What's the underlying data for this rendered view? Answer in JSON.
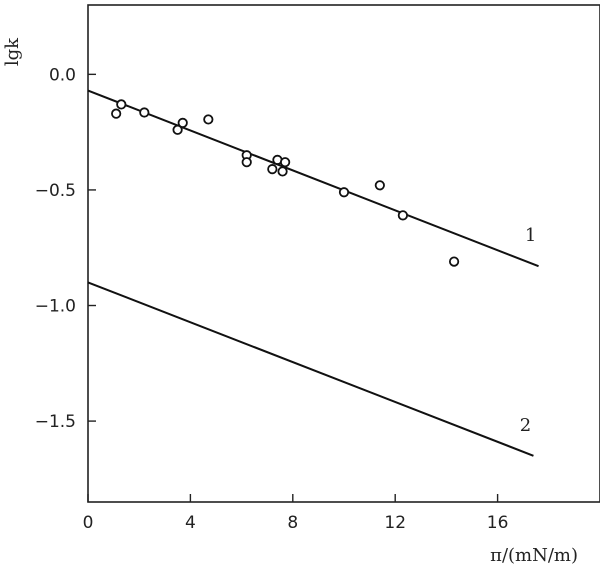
{
  "chart_data": {
    "type": "scatter",
    "ylabel": "lgk",
    "xlabel": "π/(mN/m)",
    "xlim": [
      0,
      20
    ],
    "ylim": [
      -1.85,
      0.3
    ],
    "x_ticks": [
      0,
      4,
      8,
      12,
      16
    ],
    "y_ticks": [
      0.0,
      -0.5,
      -1.0,
      -1.5
    ],
    "x_tick_labels": [
      "0",
      "4",
      "8",
      "12",
      "16"
    ],
    "y_tick_labels": [
      "0.0",
      "−0.5",
      "−1.0",
      "−1.5"
    ],
    "grid": false,
    "legend": "none",
    "series": [
      {
        "kind": "points",
        "marker": "open-circle",
        "points": [
          {
            "x": 1.1,
            "y": -0.17
          },
          {
            "x": 1.3,
            "y": -0.13
          },
          {
            "x": 2.2,
            "y": -0.165
          },
          {
            "x": 3.5,
            "y": -0.24
          },
          {
            "x": 3.7,
            "y": -0.21
          },
          {
            "x": 4.7,
            "y": -0.195
          },
          {
            "x": 6.2,
            "y": -0.35
          },
          {
            "x": 6.2,
            "y": -0.38
          },
          {
            "x": 7.2,
            "y": -0.41
          },
          {
            "x": 7.4,
            "y": -0.37
          },
          {
            "x": 7.6,
            "y": -0.42
          },
          {
            "x": 7.7,
            "y": -0.38
          },
          {
            "x": 10.0,
            "y": -0.51
          },
          {
            "x": 11.4,
            "y": -0.48
          },
          {
            "x": 12.3,
            "y": -0.61
          },
          {
            "x": 14.3,
            "y": -0.81
          }
        ]
      },
      {
        "kind": "line",
        "label": "1",
        "x": [
          0,
          17.6
        ],
        "y": [
          -0.07,
          -0.83
        ]
      },
      {
        "kind": "line",
        "label": "2",
        "x": [
          0,
          17.4
        ],
        "y": [
          -0.9,
          -1.65
        ]
      }
    ]
  }
}
